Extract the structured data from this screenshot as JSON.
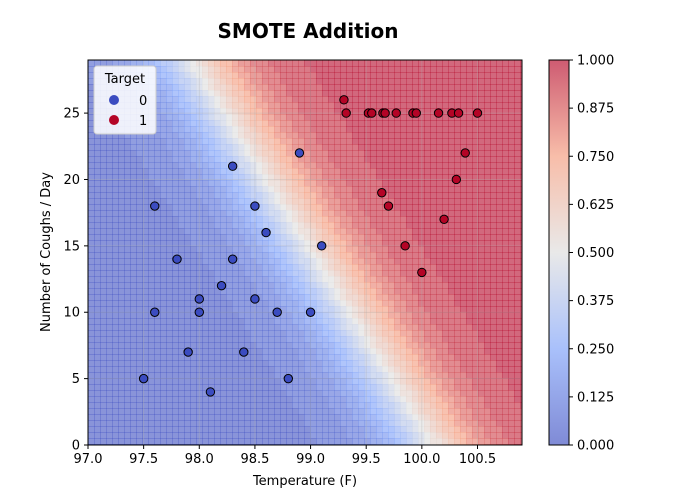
{
  "chart_data": {
    "type": "scatter",
    "title": "SMOTE Addition",
    "xlabel": "Temperature (F)",
    "ylabel": "Number of Coughs / Day",
    "xlim": [
      97.0,
      100.9
    ],
    "ylim": [
      0,
      29
    ],
    "xticks": [
      "97.0",
      "97.5",
      "98.0",
      "98.5",
      "99.0",
      "99.5",
      "100.0",
      "100.5"
    ],
    "yticks": [
      "0",
      "5",
      "10",
      "15",
      "20",
      "25"
    ],
    "grid": true,
    "legend": {
      "title": "Target",
      "placement": "top-left",
      "entries": [
        "0",
        "1"
      ]
    },
    "colorbar": {
      "range": [
        0,
        1
      ],
      "ticks": [
        "0.000",
        "0.125",
        "0.250",
        "0.375",
        "0.500",
        "0.625",
        "0.750",
        "0.875",
        "1.000"
      ]
    },
    "colors": {
      "class0": "#3b4cc0",
      "class1": "#b40426"
    },
    "series": [
      {
        "name": "0",
        "points": [
          [
            97.5,
            5
          ],
          [
            97.6,
            18
          ],
          [
            97.6,
            10
          ],
          [
            97.8,
            14
          ],
          [
            97.9,
            7
          ],
          [
            98.0,
            11
          ],
          [
            98.0,
            10
          ],
          [
            98.1,
            4
          ],
          [
            98.2,
            12
          ],
          [
            98.3,
            21
          ],
          [
            98.3,
            14
          ],
          [
            98.4,
            7
          ],
          [
            98.5,
            18
          ],
          [
            98.5,
            11
          ],
          [
            98.6,
            16
          ],
          [
            98.7,
            10
          ],
          [
            98.8,
            5
          ],
          [
            98.9,
            22
          ],
          [
            99.0,
            10
          ],
          [
            99.1,
            15
          ]
        ]
      },
      {
        "name": "1",
        "points": [
          [
            99.3,
            26
          ],
          [
            99.32,
            25
          ],
          [
            99.52,
            25
          ],
          [
            99.55,
            25
          ],
          [
            99.65,
            25
          ],
          [
            99.67,
            25
          ],
          [
            99.77,
            25
          ],
          [
            99.92,
            25
          ],
          [
            99.95,
            25
          ],
          [
            100.15,
            25
          ],
          [
            100.27,
            25
          ],
          [
            100.33,
            25
          ],
          [
            100.5,
            25
          ],
          [
            99.64,
            19
          ],
          [
            99.7,
            18
          ],
          [
            99.85,
            15
          ],
          [
            100.0,
            13
          ],
          [
            100.2,
            17
          ],
          [
            100.31,
            20
          ],
          [
            100.39,
            22
          ]
        ]
      }
    ]
  }
}
